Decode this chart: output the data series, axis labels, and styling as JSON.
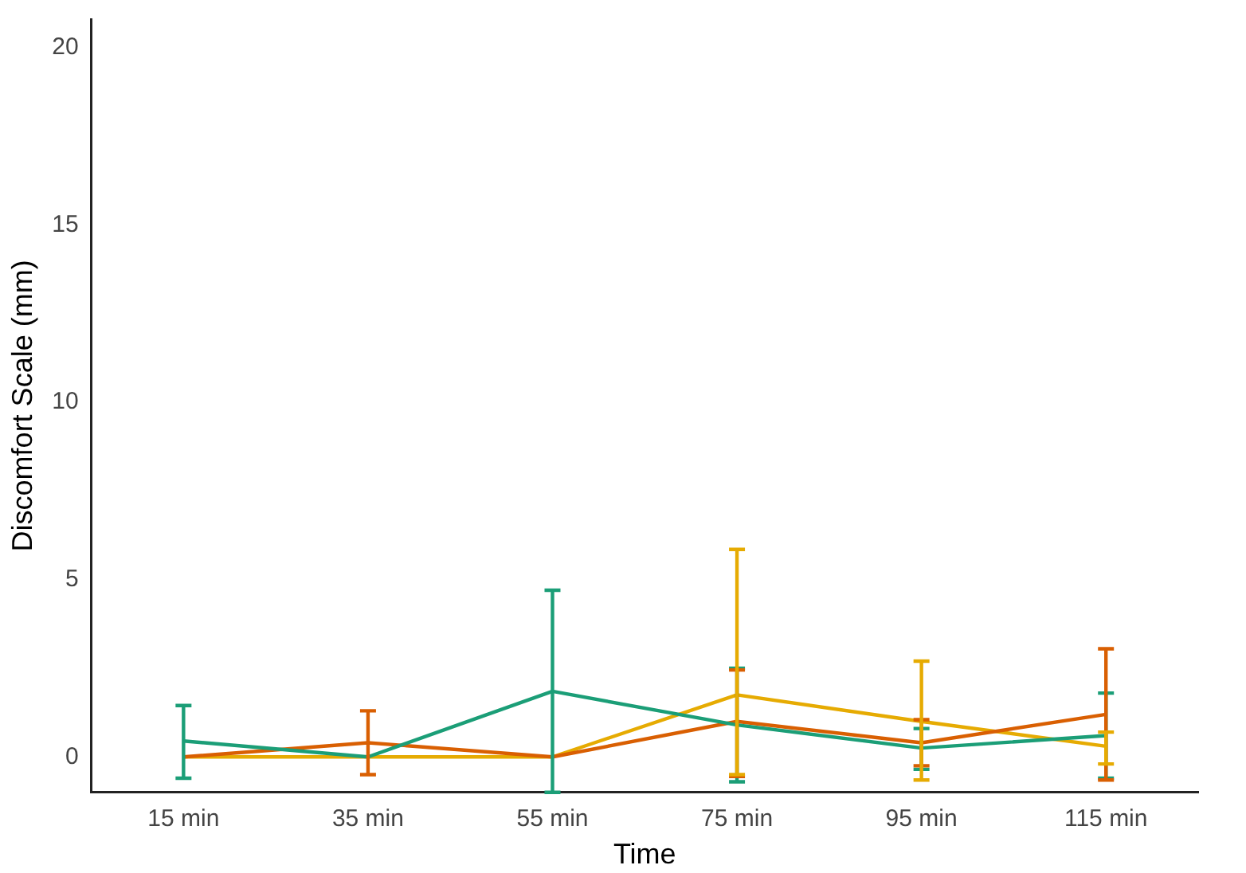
{
  "chart_data": {
    "type": "line",
    "xlabel": "Time",
    "ylabel": "Discomfort Scale (mm)",
    "categories": [
      "15 min",
      "35 min",
      "55 min",
      "75 min",
      "95 min",
      "115 min"
    ],
    "series": [
      {
        "color": "#1b9e77",
        "values": [
          0.45,
          0,
          1.85,
          0.9,
          0.25,
          0.6
        ],
        "errors": [
          [
            -0.6,
            1.45
          ],
          null,
          [
            -1,
            4.7
          ],
          [
            -0.7,
            2.5
          ],
          [
            -0.35,
            0.8
          ],
          [
            -0.6,
            1.8
          ]
        ]
      },
      {
        "color": "#d95f02",
        "values": [
          0,
          0.4,
          0,
          1,
          0.4,
          1.2
        ],
        "errors": [
          null,
          [
            -0.5,
            1.3
          ],
          null,
          [
            -0.55,
            2.45
          ],
          [
            -0.25,
            1.05
          ],
          [
            -0.65,
            3.05
          ]
        ]
      },
      {
        "color": "#e6ab02",
        "values": [
          0,
          0,
          0,
          1.75,
          1,
          0.3
        ],
        "errors": [
          null,
          null,
          null,
          [
            -0.5,
            5.85
          ],
          [
            -0.65,
            2.7
          ],
          [
            -0.2,
            0.7
          ]
        ]
      }
    ],
    "ylim": [
      -1,
      20.8
    ],
    "yticks": [
      0,
      5,
      10,
      15,
      20
    ],
    "grid": false,
    "legend": false,
    "marker": "none",
    "line_style": "solid"
  }
}
